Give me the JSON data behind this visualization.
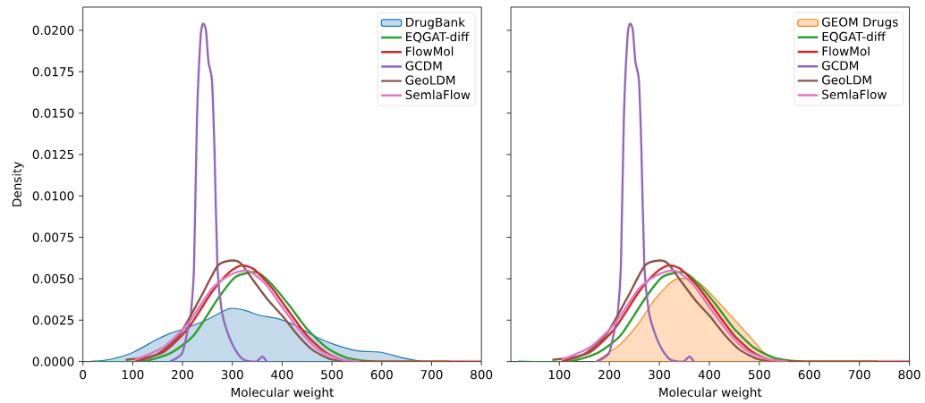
{
  "chart_data": [
    {
      "type": "line",
      "xlabel": "Molecular weight",
      "ylabel": "Density",
      "xlim": [
        0,
        800
      ],
      "ylim": [
        0,
        0.0214
      ],
      "xticks": [
        0,
        100,
        200,
        300,
        400,
        500,
        600,
        700,
        800
      ],
      "yticks": [
        {
          "value": 0,
          "label": "0.0000"
        },
        {
          "value": 0.0025,
          "label": "0.0025"
        },
        {
          "value": 0.005,
          "label": "0.0050"
        },
        {
          "value": 0.0075,
          "label": "0.0075"
        },
        {
          "value": 0.01,
          "label": "0.0100"
        },
        {
          "value": 0.0125,
          "label": "0.0125"
        },
        {
          "value": 0.015,
          "label": "0.0150"
        },
        {
          "value": 0.0175,
          "label": "0.0175"
        },
        {
          "value": 0.02,
          "label": "0.0200"
        }
      ],
      "legend": "top right",
      "series": [
        {
          "name": "DrugBank",
          "type": "area",
          "color": "#1f77b4",
          "x": [
            17,
            56,
            101,
            146,
            175,
            205,
            247,
            294,
            324,
            354,
            390,
            426,
            461,
            503,
            551,
            599,
            640,
            682,
            700
          ],
          "values": [
            0,
            0.00014,
            0.00056,
            0.0013,
            0.0017,
            0.002,
            0.0025,
            0.0032,
            0.0031,
            0.0028,
            0.0026,
            0.0022,
            0.0016,
            0.00105,
            0.00065,
            0.00056,
            0.00024,
            0,
            0
          ]
        },
        {
          "name": "EQGAT-diff",
          "color": "#2ca02c",
          "x": [
            17,
            116,
            175,
            223,
            271,
            306,
            348,
            378,
            414,
            449,
            491,
            533,
            593,
            736
          ],
          "values": [
            0,
            0,
            0.0005,
            0.0016,
            0.0038,
            0.0051,
            0.0054,
            0.0047,
            0.0034,
            0.002,
            0.0008,
            0.0002,
            0,
            0
          ]
        },
        {
          "name": "FlowMol",
          "color": "#d62728",
          "x": [
            104,
            163,
            211,
            259,
            294,
            318,
            342,
            378,
            414,
            449,
            485,
            521,
            563,
            800
          ],
          "values": [
            0,
            0.0006,
            0.002,
            0.0042,
            0.0054,
            0.0058,
            0.0056,
            0.0045,
            0.003,
            0.0016,
            0.0006,
            0.0001,
            0,
            0
          ]
        },
        {
          "name": "GCDM",
          "color": "#9467bd",
          "x": [
            175,
            199,
            211,
            217,
            223,
            229,
            236,
            241,
            247,
            252,
            259,
            264,
            270,
            279,
            291,
            306,
            323,
            348,
            360,
            369
          ],
          "values": [
            0,
            0.0005,
            0.002,
            0.003,
            0.0057,
            0.0147,
            0.0195,
            0.0204,
            0.02,
            0.0181,
            0.017,
            0.0129,
            0.0057,
            0.003,
            0.0017,
            0.0007,
            0.0001,
            0,
            0.0003,
            0
          ]
        },
        {
          "name": "GeoLDM",
          "color": "#8c564b",
          "x": [
            86,
            146,
            193,
            235,
            271,
            300,
            318,
            342,
            372,
            402,
            431,
            461,
            497,
            533
          ],
          "values": [
            0.0001,
            0.0004,
            0.0016,
            0.0038,
            0.0058,
            0.0061,
            0.0059,
            0.0049,
            0.0037,
            0.0027,
            0.0016,
            0.0007,
            0.00015,
            0
          ]
        },
        {
          "name": "SemlaFlow",
          "color": "#e377c2",
          "x": [
            104,
            163,
            211,
            259,
            294,
            330,
            366,
            402,
            437,
            473,
            515,
            557
          ],
          "values": [
            0.0001,
            0.0009,
            0.0023,
            0.0044,
            0.0052,
            0.0055,
            0.0047,
            0.0032,
            0.0018,
            0.0007,
            0.00015,
            0
          ]
        }
      ]
    },
    {
      "type": "line",
      "xlabel": "Molecular weight",
      "xlim": [
        3,
        800
      ],
      "ylim": [
        0,
        0.0214
      ],
      "xticks": [
        100,
        200,
        300,
        400,
        500,
        600,
        700,
        800
      ],
      "yticks": [
        0,
        0.0025,
        0.005,
        0.0075,
        0.01,
        0.0125,
        0.015,
        0.0175,
        0.02
      ],
      "tick_labels": "x",
      "legend": "top right",
      "series": [
        {
          "name": "GEOM Drugs",
          "type": "area",
          "color": "#ff7f0e",
          "x": [
            172,
            220,
            256,
            292,
            328,
            352,
            382,
            424,
            466,
            490,
            507,
            531,
            561
          ],
          "values": [
            0,
            0.001,
            0.0022,
            0.0038,
            0.0049,
            0.005,
            0.0047,
            0.0034,
            0.002,
            0.0012,
            0.0006,
            0.00015,
            0
          ]
        },
        {
          "name": "EQGAT-diff",
          "color": "#2ca02c",
          "x": [
            17,
            116,
            175,
            223,
            271,
            306,
            348,
            378,
            414,
            449,
            491,
            533,
            593,
            736
          ],
          "values": [
            0,
            0,
            0.0005,
            0.0016,
            0.0038,
            0.0051,
            0.0054,
            0.0047,
            0.0034,
            0.002,
            0.0008,
            0.0002,
            0,
            0
          ]
        },
        {
          "name": "FlowMol",
          "color": "#d62728",
          "x": [
            104,
            163,
            211,
            259,
            294,
            318,
            342,
            378,
            414,
            449,
            485,
            521,
            563,
            800
          ],
          "values": [
            0,
            0.0006,
            0.002,
            0.0042,
            0.0054,
            0.0058,
            0.0056,
            0.0045,
            0.003,
            0.0016,
            0.0006,
            0.0001,
            0,
            0
          ]
        },
        {
          "name": "GCDM",
          "color": "#9467bd",
          "x": [
            175,
            199,
            211,
            217,
            223,
            229,
            236,
            241,
            247,
            252,
            259,
            264,
            270,
            279,
            291,
            306,
            323,
            348,
            360,
            369
          ],
          "values": [
            0,
            0.0005,
            0.002,
            0.003,
            0.0057,
            0.0147,
            0.0195,
            0.0204,
            0.02,
            0.0181,
            0.017,
            0.0129,
            0.0057,
            0.003,
            0.0017,
            0.0007,
            0.0001,
            0,
            0.0003,
            0
          ]
        },
        {
          "name": "GeoLDM",
          "color": "#8c564b",
          "x": [
            86,
            146,
            193,
            235,
            271,
            300,
            318,
            342,
            372,
            402,
            431,
            461,
            497,
            533
          ],
          "values": [
            0.0001,
            0.0004,
            0.0016,
            0.0038,
            0.0058,
            0.0061,
            0.0059,
            0.0049,
            0.0037,
            0.0027,
            0.0016,
            0.0007,
            0.00015,
            0
          ]
        },
        {
          "name": "SemlaFlow",
          "color": "#e377c2",
          "x": [
            104,
            163,
            211,
            259,
            294,
            330,
            366,
            402,
            437,
            473,
            515,
            557
          ],
          "values": [
            0.0001,
            0.0009,
            0.0023,
            0.0044,
            0.0052,
            0.0055,
            0.0047,
            0.0032,
            0.0018,
            0.0007,
            0.00015,
            0
          ]
        }
      ]
    }
  ]
}
